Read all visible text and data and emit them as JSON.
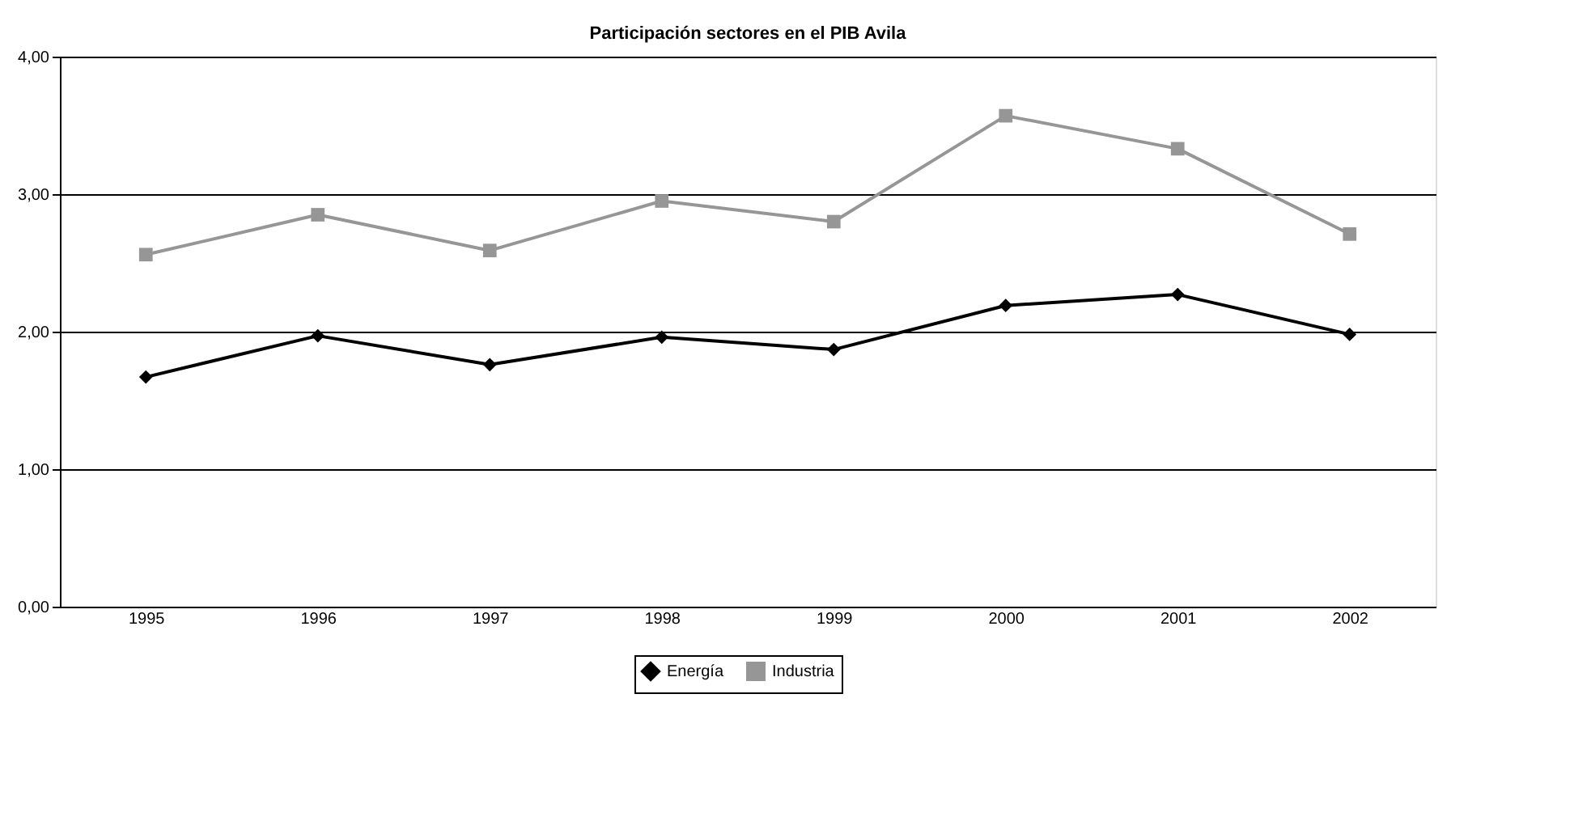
{
  "chart_data": {
    "type": "line",
    "title": "Participación sectores en el PIB Avila",
    "categories": [
      "1995",
      "1996",
      "1997",
      "1998",
      "1999",
      "2000",
      "2001",
      "2002"
    ],
    "series": [
      {
        "name": "Energía",
        "color": "#000000",
        "marker": "diamond",
        "values": [
          1.67,
          1.97,
          1.76,
          1.96,
          1.87,
          2.19,
          2.27,
          1.98
        ]
      },
      {
        "name": "Industria",
        "color": "#969696",
        "marker": "square",
        "values": [
          2.56,
          2.85,
          2.59,
          2.95,
          2.8,
          3.57,
          3.33,
          2.71
        ]
      }
    ],
    "ylim": [
      0,
      4
    ],
    "yticks": [
      {
        "value": 0,
        "label": "0,00"
      },
      {
        "value": 1,
        "label": "1,00"
      },
      {
        "value": 2,
        "label": "2,00"
      },
      {
        "value": 3,
        "label": "3,00"
      },
      {
        "value": 4,
        "label": "4,00"
      }
    ],
    "grid": "y",
    "legend": "bottom",
    "line_style": "solid"
  }
}
